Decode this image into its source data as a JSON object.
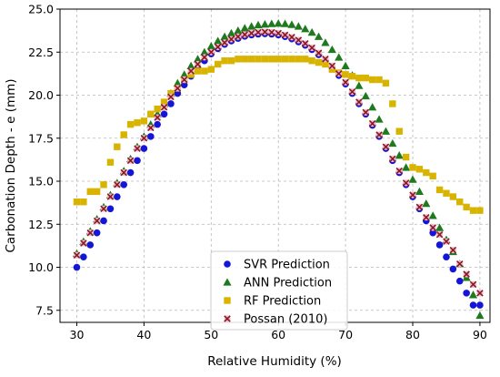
{
  "chart_data": {
    "type": "scatter",
    "title": "",
    "xlabel": "Relative Humidity (%)",
    "ylabel": "Carbonation Depth - e (mm)",
    "xlim": [
      27.5,
      91.5
    ],
    "ylim": [
      6.8,
      25.0
    ],
    "xticks": [
      "30",
      "40",
      "50",
      "60",
      "70",
      "80",
      "90"
    ],
    "yticks": [
      "7.5",
      "10.0",
      "12.5",
      "15.0",
      "17.5",
      "20.0",
      "22.5",
      "25.0"
    ],
    "grid": true,
    "legend_position": "lower-center",
    "series": [
      {
        "name": "SVR Prediction",
        "marker": "circle",
        "color": "#1515d8",
        "x": [
          30,
          31,
          32,
          33,
          34,
          35,
          36,
          37,
          38,
          39,
          40,
          41,
          42,
          43,
          44,
          45,
          46,
          47,
          48,
          49,
          50,
          51,
          52,
          53,
          54,
          55,
          56,
          57,
          58,
          59,
          60,
          61,
          62,
          63,
          64,
          65,
          66,
          67,
          68,
          69,
          70,
          71,
          72,
          73,
          74,
          75,
          76,
          77,
          78,
          79,
          80,
          81,
          82,
          83,
          84,
          85,
          86,
          87,
          88,
          89,
          90
        ],
        "y": [
          10.0,
          10.6,
          11.3,
          12.0,
          12.7,
          13.4,
          14.1,
          14.8,
          15.5,
          16.2,
          16.9,
          17.6,
          18.3,
          18.9,
          19.5,
          20.1,
          20.6,
          21.1,
          21.6,
          22.0,
          22.4,
          22.7,
          22.95,
          23.15,
          23.3,
          23.42,
          23.5,
          23.55,
          23.57,
          23.55,
          23.5,
          23.4,
          23.27,
          23.1,
          22.9,
          22.65,
          22.35,
          22.0,
          21.6,
          21.15,
          20.65,
          20.1,
          19.5,
          18.9,
          18.25,
          17.6,
          16.9,
          16.2,
          15.5,
          14.8,
          14.1,
          13.4,
          12.7,
          12.0,
          11.3,
          10.6,
          9.9,
          9.2,
          8.5,
          7.8,
          7.8
        ]
      },
      {
        "name": "ANN Prediction",
        "marker": "triangle",
        "color": "#1f7a1f",
        "x": [
          30,
          31,
          32,
          33,
          34,
          35,
          36,
          37,
          38,
          39,
          40,
          41,
          42,
          43,
          44,
          45,
          46,
          47,
          48,
          49,
          50,
          51,
          52,
          53,
          54,
          55,
          56,
          57,
          58,
          59,
          60,
          61,
          62,
          63,
          64,
          65,
          66,
          67,
          68,
          69,
          70,
          71,
          72,
          73,
          74,
          75,
          76,
          77,
          78,
          79,
          80,
          81,
          82,
          83,
          84,
          85,
          86,
          87,
          88,
          89,
          90
        ],
        "y": [
          10.8,
          11.5,
          12.1,
          12.8,
          13.5,
          14.2,
          14.9,
          15.6,
          16.3,
          17.0,
          17.6,
          18.3,
          18.9,
          19.5,
          20.1,
          20.7,
          21.2,
          21.7,
          22.1,
          22.5,
          22.85,
          23.15,
          23.4,
          23.6,
          23.75,
          23.9,
          24.0,
          24.08,
          24.12,
          24.15,
          24.17,
          24.15,
          24.1,
          24.0,
          23.85,
          23.65,
          23.4,
          23.05,
          22.65,
          22.2,
          21.7,
          21.15,
          20.55,
          19.95,
          19.3,
          18.6,
          17.9,
          17.2,
          16.5,
          15.8,
          15.1,
          14.4,
          13.7,
          13.0,
          12.3,
          11.6,
          10.9,
          10.2,
          9.4,
          8.4,
          7.2
        ]
      },
      {
        "name": "RF Prediction",
        "marker": "square",
        "color": "#d8b400",
        "x": [
          30,
          31,
          32,
          33,
          34,
          35,
          36,
          37,
          38,
          39,
          40,
          41,
          42,
          43,
          44,
          45,
          46,
          47,
          48,
          49,
          50,
          51,
          52,
          53,
          54,
          55,
          56,
          57,
          58,
          59,
          60,
          61,
          62,
          63,
          64,
          65,
          66,
          67,
          68,
          69,
          70,
          71,
          72,
          73,
          74,
          75,
          76,
          77,
          78,
          79,
          80,
          81,
          82,
          83,
          84,
          85,
          86,
          87,
          88,
          89,
          90
        ],
        "y": [
          13.8,
          13.8,
          14.4,
          14.4,
          14.8,
          16.1,
          17.0,
          17.7,
          18.3,
          18.4,
          18.5,
          18.9,
          19.2,
          19.6,
          20.1,
          20.4,
          20.9,
          21.2,
          21.4,
          21.4,
          21.5,
          21.8,
          22.0,
          22.0,
          22.1,
          22.1,
          22.1,
          22.1,
          22.1,
          22.1,
          22.1,
          22.1,
          22.1,
          22.1,
          22.1,
          22.0,
          21.9,
          21.8,
          21.5,
          21.3,
          21.2,
          21.1,
          21.0,
          21.0,
          20.9,
          20.9,
          20.7,
          19.5,
          17.9,
          16.4,
          15.8,
          15.7,
          15.5,
          15.3,
          14.5,
          14.3,
          14.1,
          13.8,
          13.5,
          13.3,
          13.3
        ]
      },
      {
        "name": "Possan (2010)",
        "marker": "x",
        "color": "#8b1a1a",
        "x": [
          30,
          31,
          32,
          33,
          34,
          35,
          36,
          37,
          38,
          39,
          40,
          41,
          42,
          43,
          44,
          45,
          46,
          47,
          48,
          49,
          50,
          51,
          52,
          53,
          54,
          55,
          56,
          57,
          58,
          59,
          60,
          61,
          62,
          63,
          64,
          65,
          66,
          67,
          68,
          69,
          70,
          71,
          72,
          73,
          74,
          75,
          76,
          77,
          78,
          79,
          80,
          81,
          82,
          83,
          84,
          85,
          86,
          87,
          88,
          89,
          90
        ],
        "y": [
          10.7,
          11.4,
          12.0,
          12.7,
          13.4,
          14.1,
          14.8,
          15.5,
          16.2,
          16.9,
          17.5,
          18.1,
          18.7,
          19.3,
          19.9,
          20.4,
          20.9,
          21.4,
          21.8,
          22.2,
          22.5,
          22.8,
          23.05,
          23.25,
          23.4,
          23.52,
          23.6,
          23.65,
          23.67,
          23.65,
          23.6,
          23.5,
          23.37,
          23.2,
          23.0,
          22.75,
          22.45,
          22.1,
          21.7,
          21.25,
          20.75,
          20.2,
          19.6,
          19.0,
          18.35,
          17.7,
          17.0,
          16.3,
          15.6,
          14.9,
          14.2,
          13.5,
          12.9,
          12.3,
          11.9,
          11.5,
          11.0,
          10.2,
          9.6,
          9.0,
          8.5
        ]
      }
    ]
  }
}
